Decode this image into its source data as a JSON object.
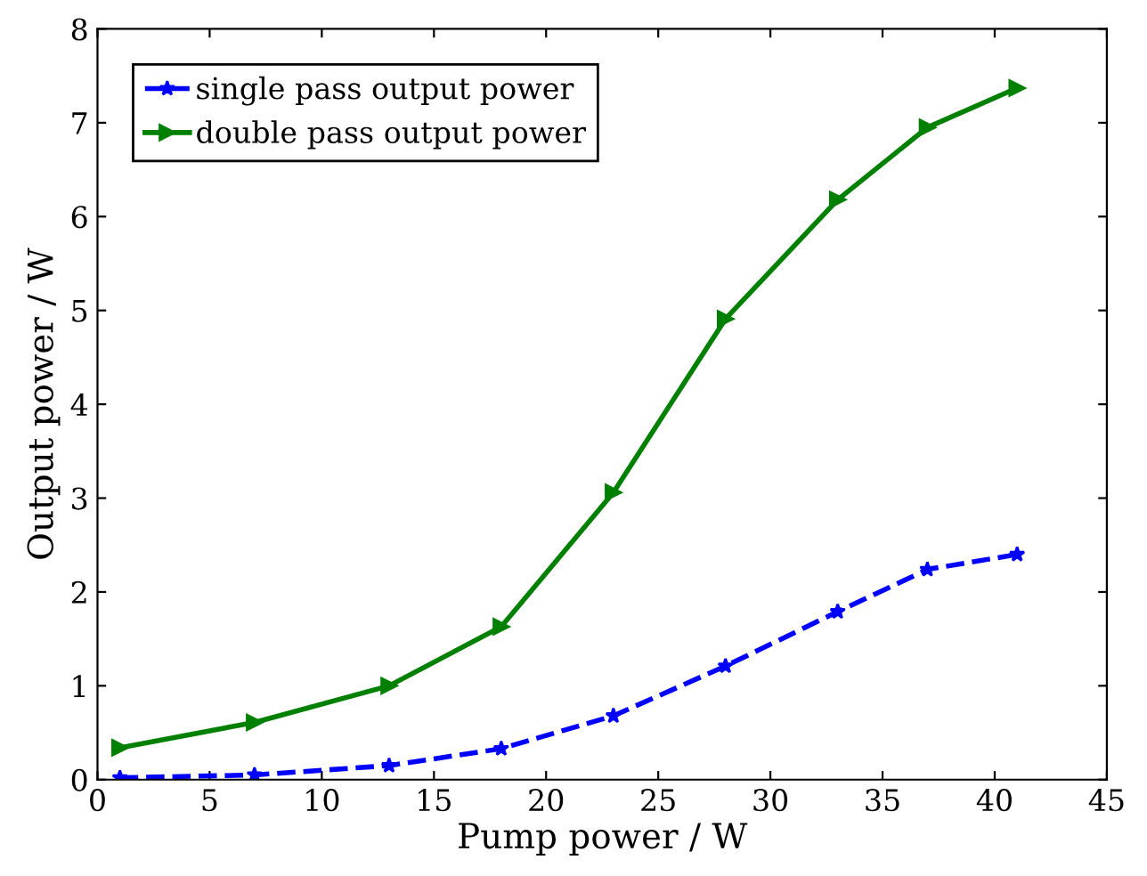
{
  "chart_data": {
    "type": "line",
    "xlabel": "Pump power / W",
    "ylabel": "Output power / W",
    "x": [
      1,
      7,
      13,
      18,
      23,
      28,
      33,
      37,
      41
    ],
    "series": [
      {
        "name": "single pass output power",
        "color": "#0000ff",
        "marker": "star",
        "line_style": "dashed",
        "values": [
          0.02,
          0.05,
          0.15,
          0.33,
          0.68,
          1.21,
          1.79,
          2.24,
          2.4
        ]
      },
      {
        "name": "double pass output power",
        "color": "#008000",
        "marker": "triangle",
        "line_style": "solid",
        "values": [
          0.34,
          0.61,
          1.0,
          1.63,
          3.06,
          4.91,
          6.18,
          6.95,
          7.37
        ]
      }
    ],
    "xlim": [
      0,
      45
    ],
    "xticks": [
      0,
      5,
      10,
      15,
      20,
      25,
      30,
      35,
      40,
      45
    ],
    "ylim": [
      0,
      8
    ],
    "yticks": [
      0,
      1,
      2,
      3,
      4,
      5,
      6,
      7,
      8
    ],
    "grid": false,
    "legend": "top left"
  }
}
